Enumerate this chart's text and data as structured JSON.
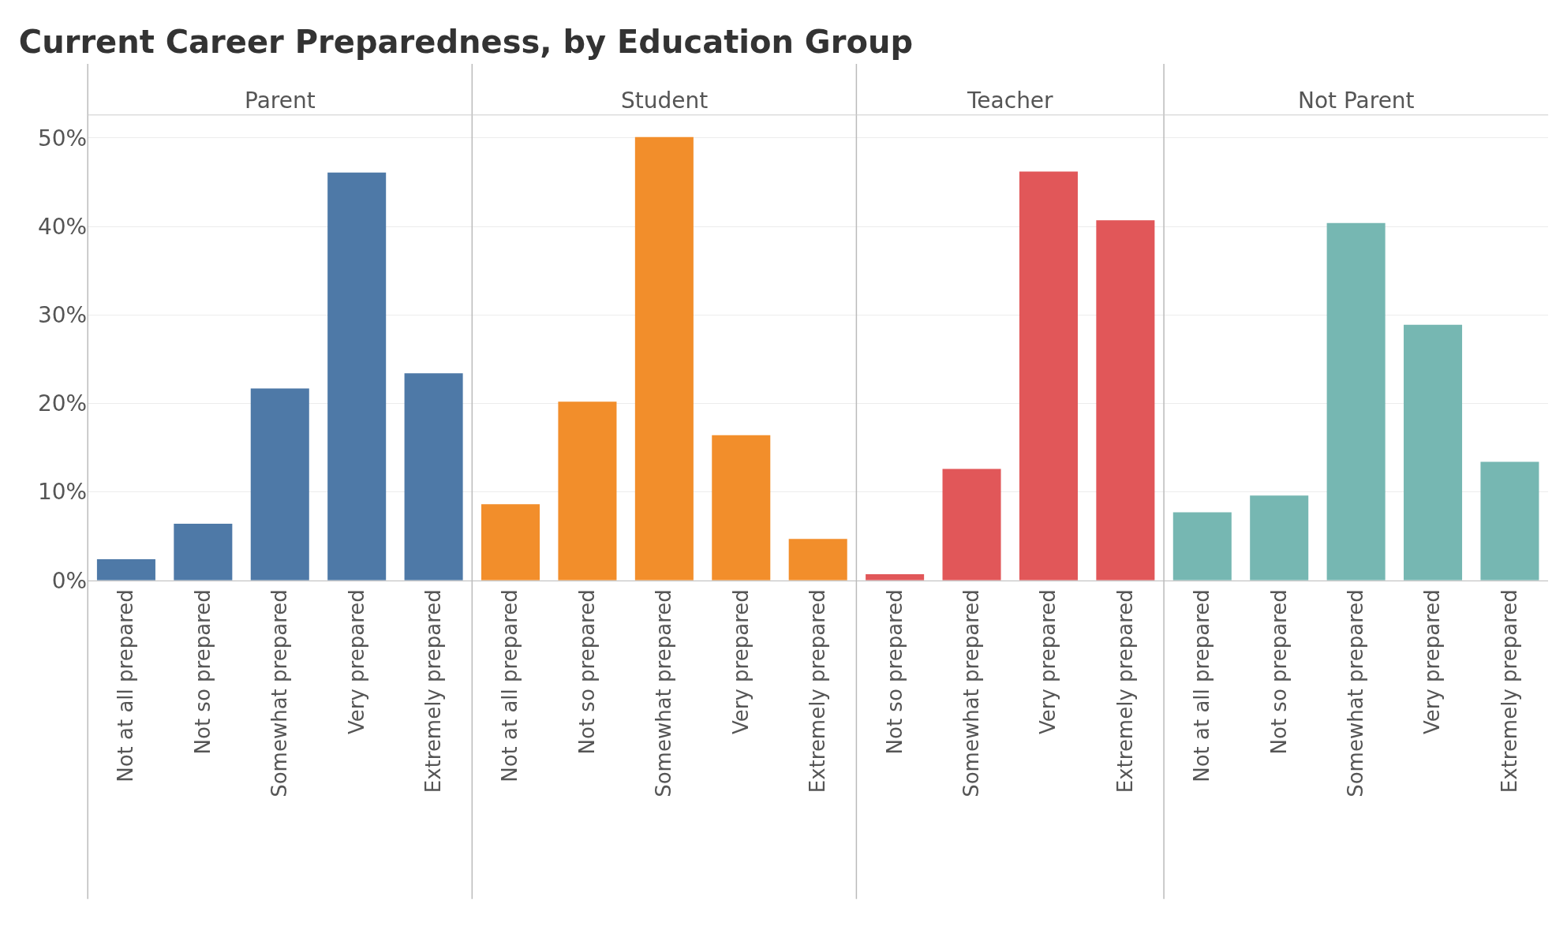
{
  "chart_data": [
    {
      "type": "bar",
      "title": "Current Career Preparedness, by Education Group",
      "subtitle": "Parent",
      "categories": [
        "Not at all prepared",
        "Not so prepared",
        "Somewhat prepared",
        "Very prepared",
        "Extremely prepared"
      ],
      "values": [
        2.4,
        6.4,
        21.7,
        46.1,
        23.4
      ],
      "color": "#4e79a7",
      "ylim": [
        0,
        52.6
      ],
      "yticks": [
        {
          "value": 0,
          "label": "0%"
        },
        {
          "value": 10,
          "label": "10%"
        },
        {
          "value": 20,
          "label": "20%"
        },
        {
          "value": 30,
          "label": "30%"
        },
        {
          "value": 40,
          "label": "40%"
        },
        {
          "value": 50,
          "label": "50%"
        }
      ],
      "grid": "y"
    },
    {
      "type": "bar",
      "subtitle": "Student",
      "categories": [
        "Not at all prepared",
        "Not so prepared",
        "Somewhat prepared",
        "Very prepared",
        "Extremely prepared"
      ],
      "values": [
        8.6,
        20.2,
        50.1,
        16.4,
        4.7
      ],
      "color": "#f28e2b",
      "ylim": [
        0,
        52.6
      ],
      "yticks": [
        0,
        10,
        20,
        30,
        40,
        50
      ],
      "grid": "y",
      "tick_labels": "x"
    },
    {
      "type": "bar",
      "subtitle": "Teacher",
      "categories": [
        "Not so prepared",
        "Somewhat prepared",
        "Very prepared",
        "Extremely prepared"
      ],
      "values": [
        0.7,
        12.6,
        46.2,
        40.7
      ],
      "color": "#e15759",
      "ylim": [
        0,
        52.6
      ],
      "yticks": [
        0,
        10,
        20,
        30,
        40,
        50
      ],
      "grid": "y",
      "tick_labels": "x"
    },
    {
      "type": "bar",
      "subtitle": "Not Parent",
      "categories": [
        "Not at all prepared",
        "Not so prepared",
        "Somewhat prepared",
        "Very prepared",
        "Extremely prepared"
      ],
      "values": [
        7.7,
        9.6,
        40.4,
        28.9,
        13.4
      ],
      "color": "#76b7b2",
      "ylim": [
        0,
        52.6
      ],
      "yticks": [
        0,
        10,
        20,
        30,
        40,
        50
      ],
      "grid": "y",
      "tick_labels": "x"
    }
  ]
}
